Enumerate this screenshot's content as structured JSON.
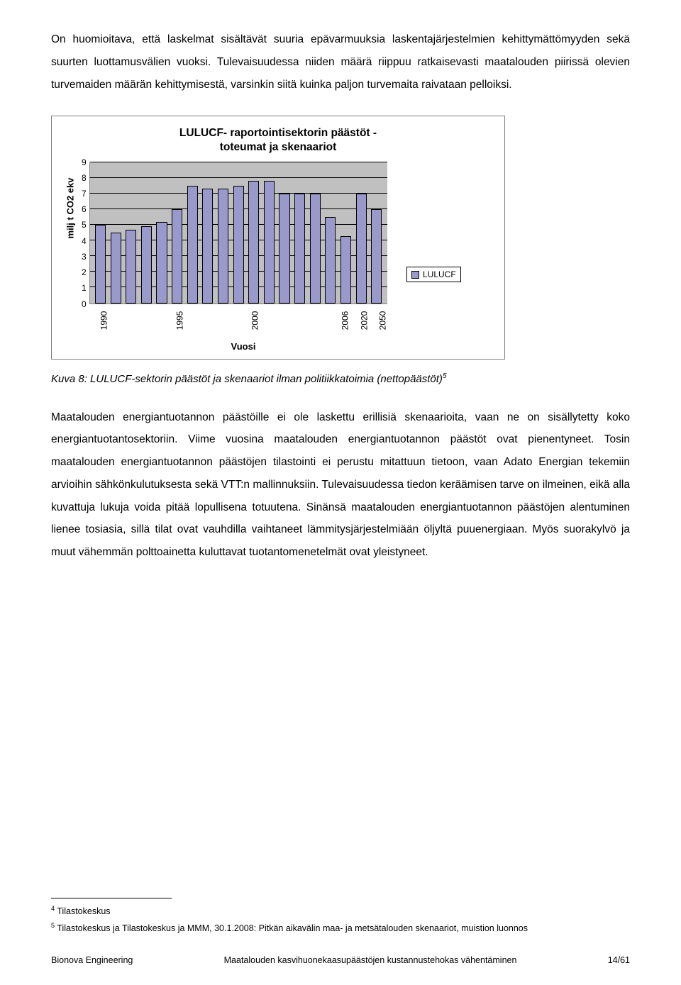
{
  "para1": "On huomioitava, että laskelmat sisältävät suuria epävarmuuksia laskentajärjestelmien kehittymättömyyden sekä suurten luottamusvälien vuoksi. Tulevaisuudessa niiden määrä riippuu ratkaisevasti maatalouden piirissä olevien turvemaiden määrän kehittymisestä, varsinkin siitä kuinka paljon turvemaita raivataan pelloiksi.",
  "chart": {
    "type": "bar",
    "title_l1": "LULUCF- raportointisektorin päästöt -",
    "title_l2": "toteumat ja skenaariot",
    "y_label": "milj t CO2 ekv",
    "x_label": "Vuosi",
    "ylim_max": 9,
    "y_ticks": [
      "9",
      "8",
      "7",
      "6",
      "5",
      "4",
      "3",
      "2",
      "1",
      "0"
    ],
    "legend_label": "LULUCF",
    "bar_color": "#9999cc",
    "plot_bg": "#c0c0c0",
    "bars": [
      {
        "x": "1990",
        "v": 5.0
      },
      {
        "x": "",
        "v": 4.5
      },
      {
        "x": "",
        "v": 4.7
      },
      {
        "x": "",
        "v": 4.9
      },
      {
        "x": "",
        "v": 5.2
      },
      {
        "x": "1995",
        "v": 6.0
      },
      {
        "x": "",
        "v": 7.5
      },
      {
        "x": "",
        "v": 7.3
      },
      {
        "x": "",
        "v": 7.3
      },
      {
        "x": "",
        "v": 7.5
      },
      {
        "x": "2000",
        "v": 7.8
      },
      {
        "x": "",
        "v": 7.8
      },
      {
        "x": "",
        "v": 7.0
      },
      {
        "x": "",
        "v": 7.0
      },
      {
        "x": "",
        "v": 7.0
      },
      {
        "x": "",
        "v": 5.5
      },
      {
        "x": "2006",
        "v": 4.3
      },
      {
        "x": "2020",
        "v": 7.0
      },
      {
        "x": "2050",
        "v": 6.0
      }
    ]
  },
  "caption_text": "Kuva 8: LULUCF-sektorin päästöt ja skenaariot ilman politiikkatoimia (nettopäästöt)",
  "caption_sup": "5",
  "para2": "Maatalouden energiantuotannon päästöille ei ole laskettu erillisiä skenaarioita, vaan ne on sisällytetty koko energiantuotantosektoriin. Viime vuosina maatalouden energiantuotannon päästöt ovat pienentyneet. Tosin maatalouden energiantuotannon päästöjen tilastointi ei perustu mitattuun tietoon, vaan Adato Energian tekemiin arvioihin sähkönkulutuksesta sekä VTT:n mallinnuksiin. Tulevaisuudessa tiedon keräämisen tarve on ilmeinen, eikä alla kuvattuja lukuja voida pitää lopullisena totuutena. Sinänsä maatalouden energiantuotannon päästöjen alentuminen lienee tosiasia, sillä tilat ovat vauhdilla vaihtaneet lämmitysjärjestelmiään öljyltä puuenergiaan. Myös suorakylvö ja muut vähemmän polttoainetta kuluttavat tuotantomenetelmät ovat yleistyneet.",
  "footnotes": {
    "fn4_num": "4",
    "fn4_text": " Tilastokeskus",
    "fn5_num": "5",
    "fn5_text": " Tilastokeskus ja Tilastokeskus  ja MMM, 30.1.2008: Pitkän aikavälin maa- ja metsätalouden skenaariot, muistion luonnos"
  },
  "footer": {
    "left": "Bionova Engineering",
    "center": "Maatalouden kasvihuonekaasupäästöjen kustannustehokas vähentäminen",
    "right": "14/61"
  }
}
